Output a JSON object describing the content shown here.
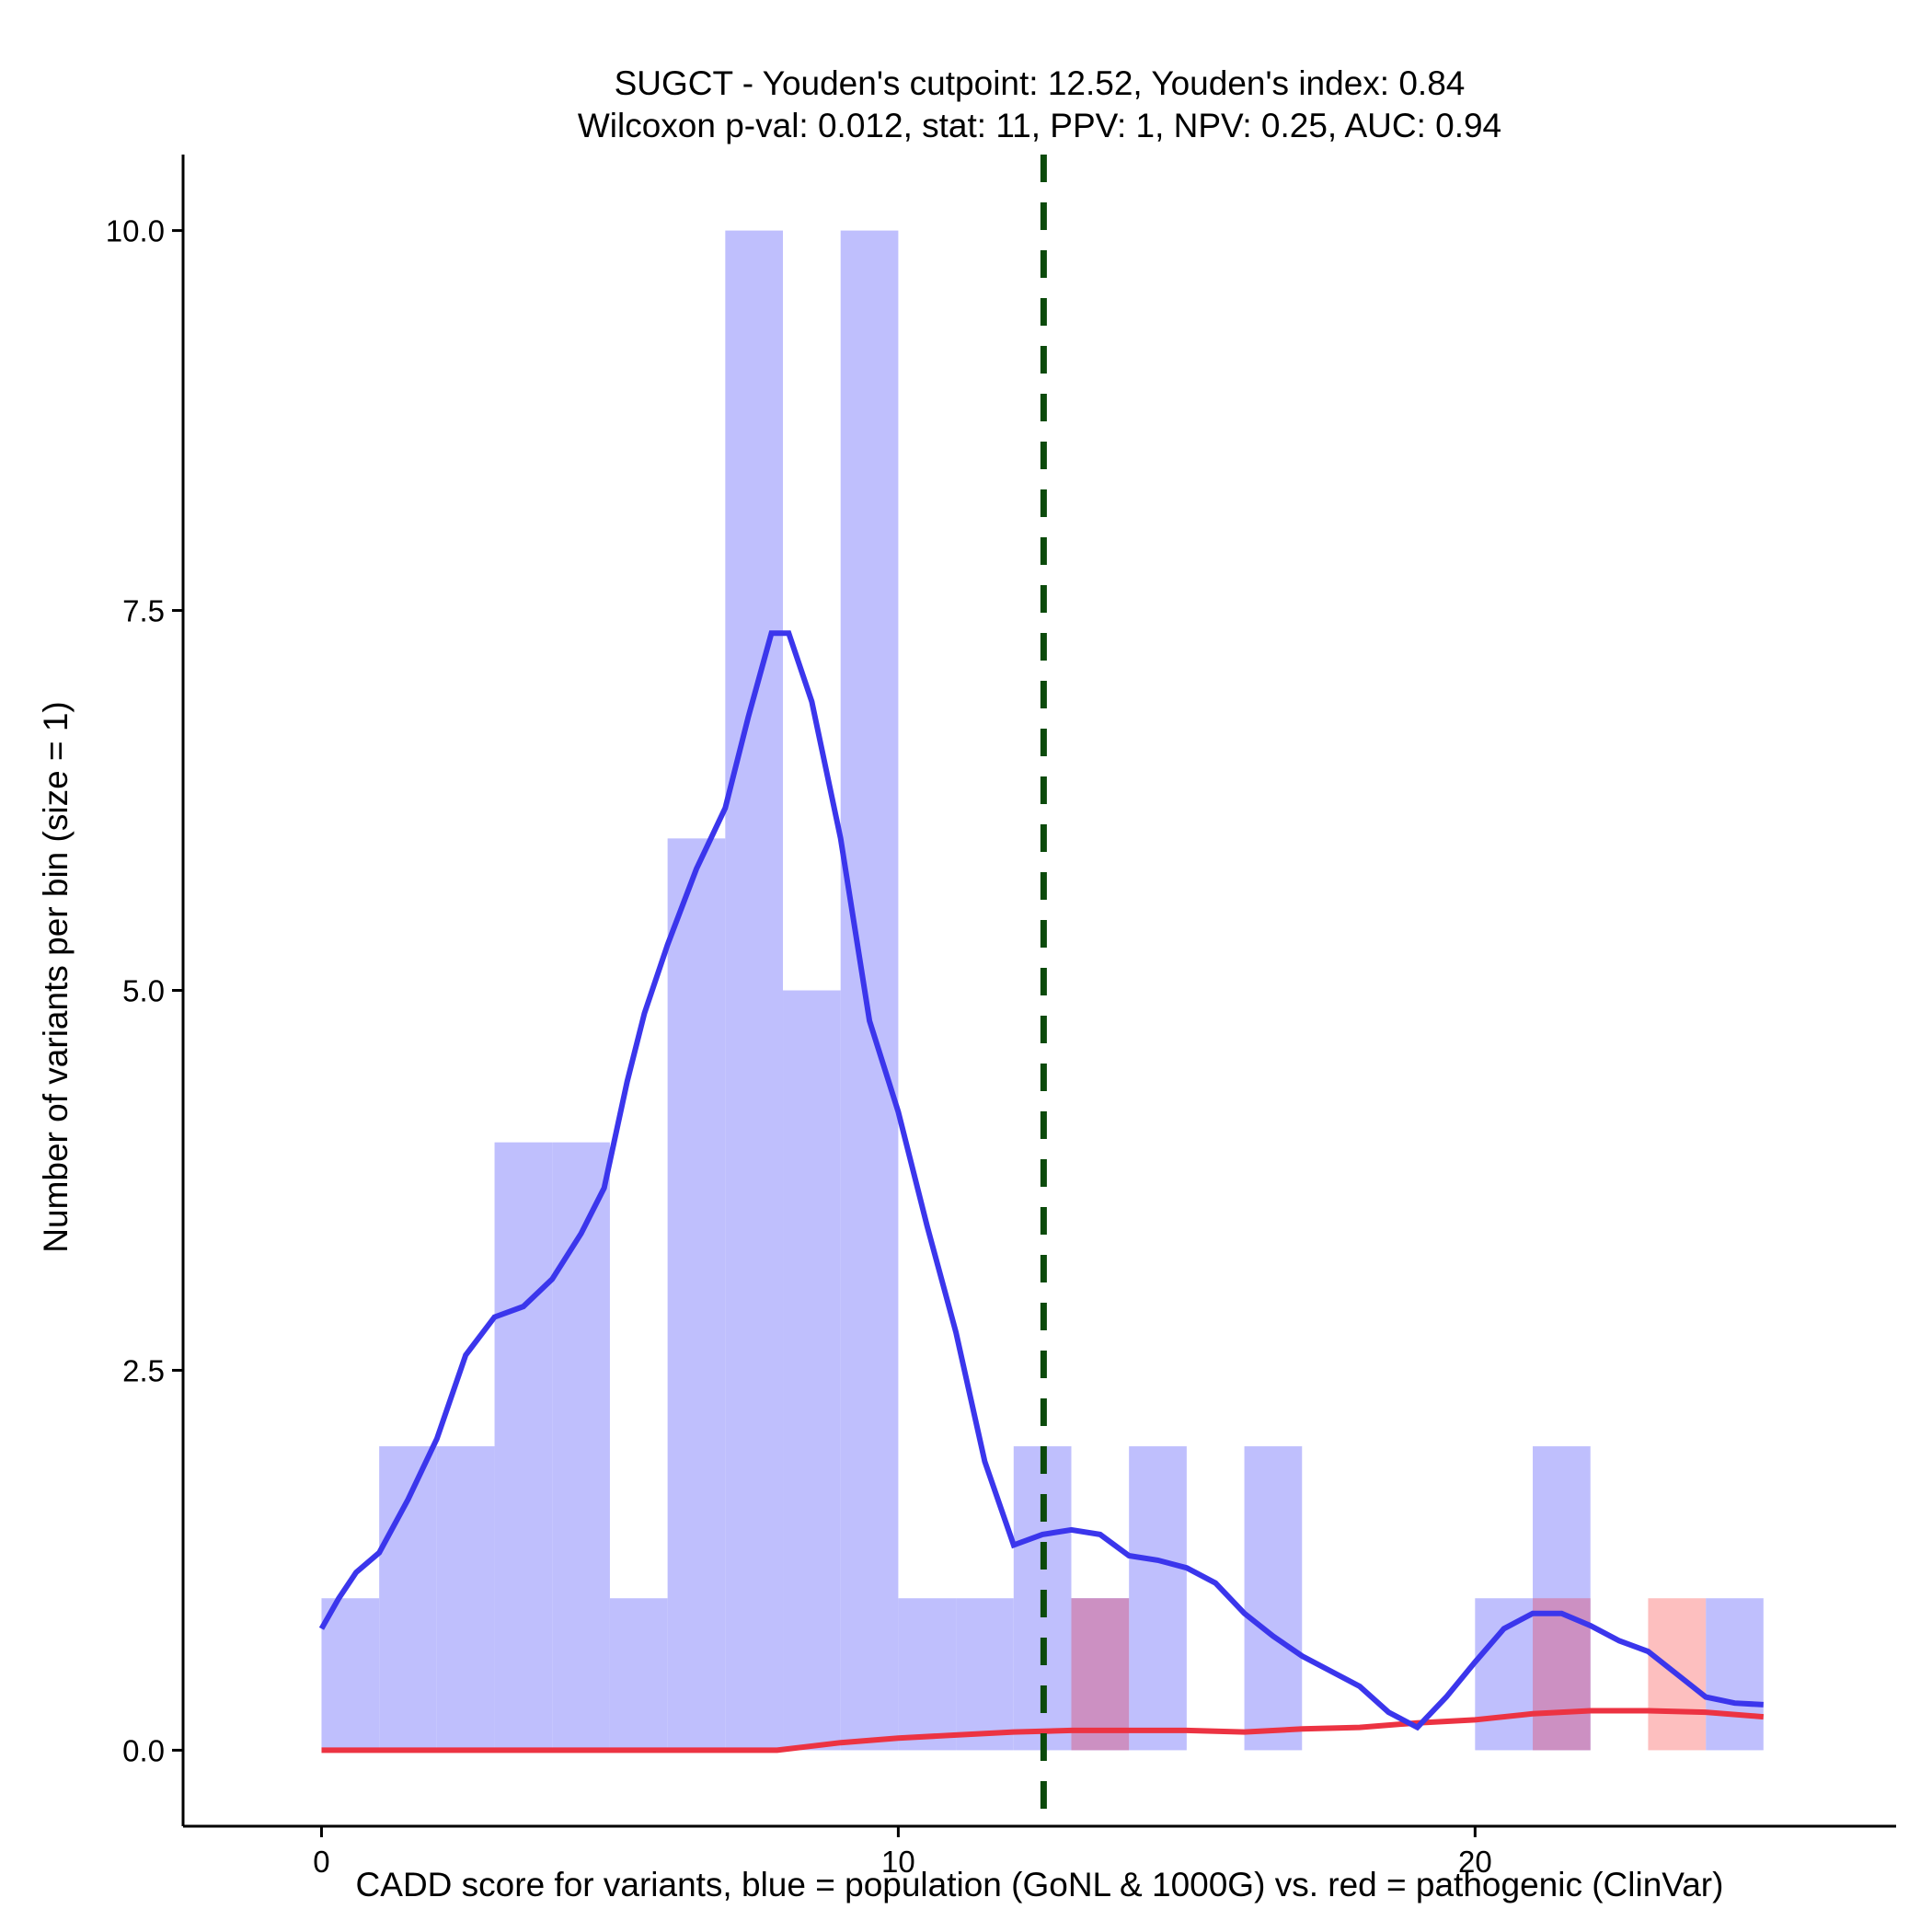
{
  "chart_data": {
    "type": "histogram",
    "title_line1": "SUGCT - Youden's cutpoint: 12.52, Youden's index: 0.84",
    "title_line2": "Wilcoxon p-val: 0.012, stat: 11, PPV: 1, NPV: 0.25, AUC: 0.94",
    "xlabel": "CADD score for variants, blue = population (GoNL & 1000G) vs. red = pathogenic (ClinVar)",
    "ylabel": "Number of variants per bin (size = 1)",
    "xlim": [
      -2.4,
      27.3
    ],
    "ylim": [
      -0.5,
      10.5
    ],
    "x_ticks": [
      {
        "value": 0,
        "label": "0"
      },
      {
        "value": 10,
        "label": "10"
      },
      {
        "value": 20,
        "label": "20"
      }
    ],
    "y_ticks": [
      {
        "value": 0,
        "label": "0.0"
      },
      {
        "value": 2.5,
        "label": "2.5"
      },
      {
        "value": 5,
        "label": "5.0"
      },
      {
        "value": 7.5,
        "label": "7.5"
      },
      {
        "value": 10,
        "label": "10.0"
      }
    ],
    "cutpoint": 12.52,
    "colors": {
      "population_bar": "#bfbffd",
      "pathogenic_bar": "#fdbfbf",
      "overlap_bar": "#cc90c2",
      "population_line": "#3b36ec",
      "pathogenic_line": "#ec3342",
      "cutpoint_line": "#0b4a0b"
    },
    "series": [
      {
        "name": "population (GoNL & 1000G)",
        "bin_size": 1,
        "bins": [
          {
            "x": 0,
            "count": 1
          },
          {
            "x": 1,
            "count": 2
          },
          {
            "x": 2,
            "count": 2
          },
          {
            "x": 3,
            "count": 4
          },
          {
            "x": 4,
            "count": 4
          },
          {
            "x": 5,
            "count": 1
          },
          {
            "x": 6,
            "count": 6
          },
          {
            "x": 7,
            "count": 10
          },
          {
            "x": 8,
            "count": 5
          },
          {
            "x": 9,
            "count": 10
          },
          {
            "x": 10,
            "count": 1
          },
          {
            "x": 11,
            "count": 1
          },
          {
            "x": 12,
            "count": 2
          },
          {
            "x": 13,
            "count": 1
          },
          {
            "x": 14,
            "count": 2
          },
          {
            "x": 16,
            "count": 2
          },
          {
            "x": 20,
            "count": 1
          },
          {
            "x": 21,
            "count": 2
          },
          {
            "x": 24,
            "count": 1
          }
        ],
        "density": [
          [
            0,
            0.8
          ],
          [
            0.3,
            1.0
          ],
          [
            0.6,
            1.17
          ],
          [
            1.0,
            1.3
          ],
          [
            1.5,
            1.65
          ],
          [
            2.0,
            2.05
          ],
          [
            2.5,
            2.6
          ],
          [
            3.0,
            2.85
          ],
          [
            3.5,
            2.92
          ],
          [
            4.0,
            3.1
          ],
          [
            4.5,
            3.4
          ],
          [
            4.9,
            3.7
          ],
          [
            5.3,
            4.4
          ],
          [
            5.6,
            4.85
          ],
          [
            6.0,
            5.3
          ],
          [
            6.5,
            5.8
          ],
          [
            7.0,
            6.2
          ],
          [
            7.4,
            6.8
          ],
          [
            7.8,
            7.35
          ],
          [
            8.1,
            7.35
          ],
          [
            8.5,
            6.9
          ],
          [
            9.0,
            6.0
          ],
          [
            9.5,
            4.8
          ],
          [
            10.0,
            4.2
          ],
          [
            10.5,
            3.45
          ],
          [
            11.0,
            2.75
          ],
          [
            11.5,
            1.9
          ],
          [
            12.0,
            1.35
          ],
          [
            12.5,
            1.42
          ],
          [
            13.0,
            1.45
          ],
          [
            13.5,
            1.42
          ],
          [
            14.0,
            1.28
          ],
          [
            14.5,
            1.25
          ],
          [
            15.0,
            1.2
          ],
          [
            15.5,
            1.1
          ],
          [
            16.0,
            0.9
          ],
          [
            16.5,
            0.75
          ],
          [
            17.0,
            0.62
          ],
          [
            17.5,
            0.52
          ],
          [
            18.0,
            0.42
          ],
          [
            18.5,
            0.25
          ],
          [
            19.0,
            0.15
          ],
          [
            19.5,
            0.35
          ],
          [
            20.0,
            0.58
          ],
          [
            20.5,
            0.8
          ],
          [
            21.0,
            0.9
          ],
          [
            21.5,
            0.9
          ],
          [
            22.0,
            0.82
          ],
          [
            22.5,
            0.72
          ],
          [
            23.0,
            0.65
          ],
          [
            23.5,
            0.5
          ],
          [
            24.0,
            0.35
          ],
          [
            24.5,
            0.31
          ],
          [
            25.0,
            0.3
          ]
        ]
      },
      {
        "name": "pathogenic (ClinVar)",
        "bin_size": 1,
        "bins": [
          {
            "x": 13,
            "count": 1
          },
          {
            "x": 21,
            "count": 1
          },
          {
            "x": 23,
            "count": 1
          }
        ],
        "density": [
          [
            0,
            0
          ],
          [
            4,
            0
          ],
          [
            7.9,
            0
          ],
          [
            9,
            0.05
          ],
          [
            10,
            0.08
          ],
          [
            11,
            0.1
          ],
          [
            12,
            0.12
          ],
          [
            13,
            0.13
          ],
          [
            14,
            0.13
          ],
          [
            15,
            0.13
          ],
          [
            16,
            0.12
          ],
          [
            17,
            0.14
          ],
          [
            18,
            0.15
          ],
          [
            19,
            0.18
          ],
          [
            20,
            0.2
          ],
          [
            21,
            0.24
          ],
          [
            22,
            0.26
          ],
          [
            23,
            0.26
          ],
          [
            24,
            0.25
          ],
          [
            25,
            0.22
          ]
        ]
      }
    ]
  }
}
